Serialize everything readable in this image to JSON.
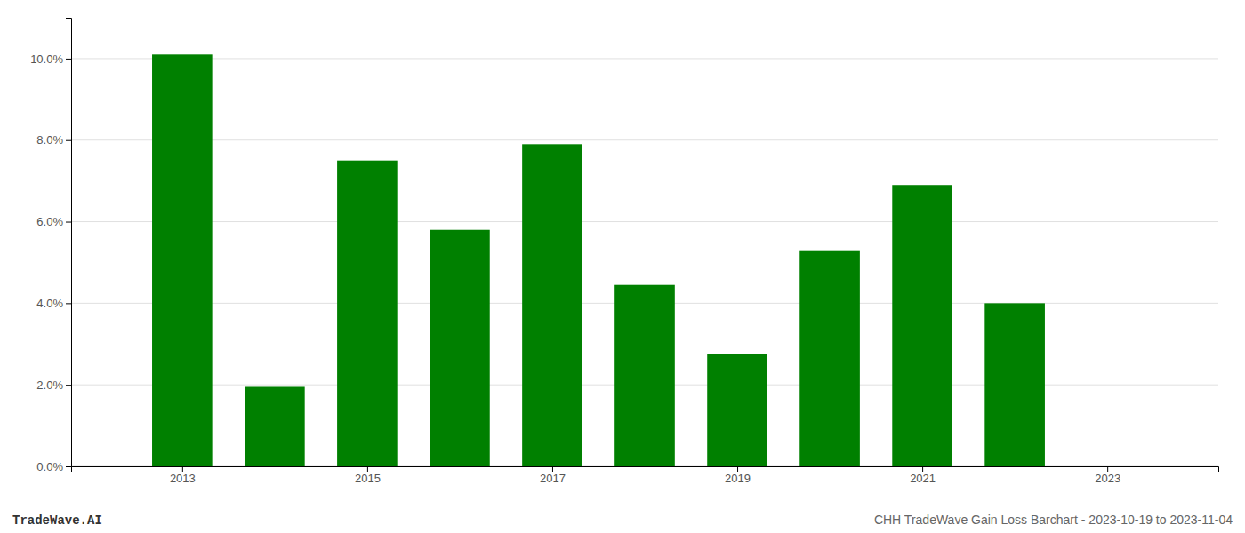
{
  "chart_data": {
    "type": "bar",
    "x": [
      2013,
      2014,
      2015,
      2016,
      2017,
      2018,
      2019,
      2020,
      2021,
      2022,
      2023
    ],
    "values": [
      0.101,
      0.0195,
      0.075,
      0.058,
      0.079,
      0.0445,
      0.0275,
      0.053,
      0.069,
      0.04,
      null
    ],
    "color": "#008000",
    "xlim": [
      2011.8,
      2024.2
    ],
    "xticks": [
      2013,
      2015,
      2017,
      2019,
      2021,
      2023
    ],
    "ylim": [
      0,
      0.11
    ],
    "yticks": [
      {
        "value": 0.0,
        "label": "0.0%"
      },
      {
        "value": 0.02,
        "label": "2.0%"
      },
      {
        "value": 0.04,
        "label": "4.0%"
      },
      {
        "value": 0.06,
        "label": "6.0%"
      },
      {
        "value": 0.08,
        "label": "8.0%"
      },
      {
        "value": 0.1,
        "label": "10.0%"
      }
    ],
    "grid": true,
    "annotations": [
      "TradeWave.AI",
      "CHH TradeWave Gain Loss Barchart - 2023-10-19 to 2023-11-04"
    ]
  }
}
